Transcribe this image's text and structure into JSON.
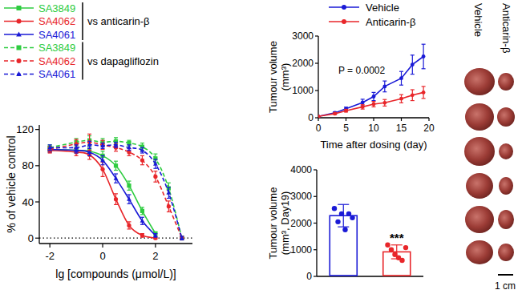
{
  "chart_data": [
    {
      "type": "line",
      "x_label": "lg [compounds (μmol/L)]",
      "y_label": "% of vehicle control",
      "xlim": [
        -2.4,
        3.4
      ],
      "ylim": [
        -6,
        125
      ],
      "xticks": [
        -2,
        0,
        2
      ],
      "yticks": [
        0,
        40,
        80,
        120
      ],
      "reference_line": 0,
      "group_labels": [
        "vs anticarin-β",
        "vs dapagliflozin"
      ],
      "series": [
        {
          "name": "SA3849",
          "color": "#2ecc40",
          "line_style": "solid",
          "marker": "square",
          "x": [
            -2,
            -1,
            -0.5,
            0,
            0.5,
            1,
            1.5,
            2
          ],
          "values": [
            98,
            97,
            96,
            91,
            80,
            58,
            30,
            5
          ],
          "errors": [
            3,
            3,
            4,
            5,
            5,
            5,
            4,
            2
          ]
        },
        {
          "name": "SA4062",
          "color": "#e8262a",
          "line_style": "solid",
          "marker": "circle",
          "x": [
            -2,
            -1,
            -0.5,
            0,
            0.5,
            1,
            1.5,
            2
          ],
          "values": [
            97,
            95,
            92,
            76,
            43,
            14,
            3,
            0
          ],
          "errors": [
            3,
            4,
            5,
            8,
            6,
            4,
            2,
            1
          ]
        },
        {
          "name": "SA4061",
          "color": "#1a1ad6",
          "line_style": "solid",
          "marker": "triangle",
          "x": [
            -2,
            -1,
            -0.5,
            0,
            0.5,
            1,
            1.5,
            2
          ],
          "values": [
            98,
            97,
            95,
            86,
            66,
            43,
            19,
            3
          ],
          "errors": [
            3,
            3,
            4,
            5,
            5,
            5,
            4,
            2
          ]
        },
        {
          "name": "SA3849",
          "color": "#2ecc40",
          "line_style": "dashed",
          "marker": "square",
          "x": [
            -2,
            -1,
            -0.5,
            0,
            0.5,
            1,
            1.5,
            2,
            2.5,
            3
          ],
          "values": [
            100,
            106,
            108,
            106,
            107,
            105,
            101,
            88,
            55,
            0
          ],
          "errors": [
            3,
            4,
            5,
            4,
            4,
            3,
            4,
            5,
            6,
            2
          ]
        },
        {
          "name": "SA4062",
          "color": "#e8262a",
          "line_style": "dashed",
          "marker": "circle",
          "x": [
            -2,
            -1,
            -0.5,
            0,
            0.5,
            1,
            1.5,
            2,
            2.5,
            3
          ],
          "values": [
            98,
            104,
            106,
            103,
            100,
            95,
            86,
            68,
            35,
            0
          ],
          "errors": [
            3,
            5,
            9,
            5,
            4,
            4,
            5,
            6,
            6,
            2
          ]
        },
        {
          "name": "SA4061",
          "color": "#1a1ad6",
          "line_style": "dashed",
          "marker": "triangle",
          "x": [
            -2,
            -1,
            -0.5,
            0,
            0.5,
            1,
            1.5,
            2,
            2.5,
            3
          ],
          "values": [
            100,
            100,
            103,
            102,
            103,
            100,
            97,
            82,
            50,
            0
          ],
          "errors": [
            3,
            3,
            4,
            3,
            3,
            3,
            3,
            5,
            6,
            2
          ]
        }
      ]
    },
    {
      "type": "line",
      "legend": "top",
      "x_label": "Time after dosing (day)",
      "y_label": [
        "Tumour volume",
        "(mm³)"
      ],
      "annotations": [
        "P = 0.0002"
      ],
      "xlim": [
        0,
        20
      ],
      "ylim": [
        0,
        3000
      ],
      "xticks": [
        0,
        5,
        10,
        15,
        20
      ],
      "yticks": [
        0,
        1000,
        2000,
        3000
      ],
      "x": [
        0,
        3,
        5,
        8,
        10,
        12,
        15,
        17,
        19
      ],
      "series": [
        {
          "name": "Vehicle",
          "color": "#1a1ad6",
          "marker": "circle",
          "values": [
            50,
            180,
            330,
            560,
            780,
            1150,
            1450,
            1950,
            2250
          ],
          "errors": [
            20,
            40,
            60,
            120,
            150,
            200,
            250,
            350,
            450
          ]
        },
        {
          "name": "Anticarin-β",
          "color": "#e8262a",
          "marker": "circle",
          "values": [
            50,
            150,
            260,
            400,
            500,
            550,
            700,
            830,
            930
          ],
          "errors": [
            20,
            30,
            50,
            80,
            100,
            120,
            150,
            200,
            220
          ]
        }
      ]
    },
    {
      "type": "bar",
      "y_label": [
        "Tumour volume",
        "(mm³, Day19)"
      ],
      "annotations": [
        "***"
      ],
      "tick_labels": "y",
      "categories": [
        null,
        null
      ],
      "values": [
        2280,
        920
      ],
      "errors": [
        420,
        260
      ],
      "colors": [
        "#1a1ad6",
        "#e8262a"
      ],
      "points": [
        [
          2550,
          2050,
          2350,
          1750,
          2350,
          2200
        ],
        [
          1180,
          1000,
          820,
          700,
          600,
          1080
        ]
      ],
      "ylim": [
        0,
        4000
      ],
      "yticks": [
        0,
        1000,
        2000,
        3000,
        4000
      ]
    }
  ],
  "photo": {
    "column_labels": [
      "Vehicle",
      "Anticarin-β"
    ],
    "scale_bar": "1 cm"
  }
}
